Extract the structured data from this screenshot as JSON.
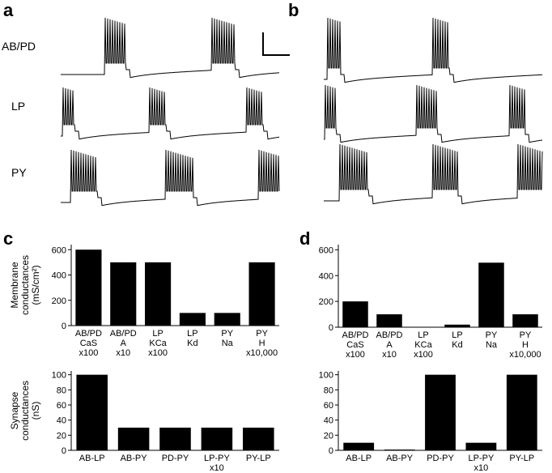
{
  "panel_labels": [
    "a",
    "b",
    "c",
    "d"
  ],
  "trace_labels": [
    "AB/PD",
    "LP",
    "PY"
  ],
  "chart_data": [
    {
      "type": "bar",
      "ylabel": [
        "Membrane",
        "conductances",
        "(mS/cm²)"
      ],
      "categories": [
        "AB/PD\nCaS\nx100",
        "AB/PD\nA\nx10",
        "LP\nKCa\nx100",
        "LP\nKd",
        "PY\nNa",
        "PY\nH\nx10,000"
      ],
      "values": [
        600,
        500,
        500,
        100,
        100,
        500
      ],
      "color": "#000000",
      "ylim": [
        0,
        640
      ],
      "yticks": [
        0,
        200,
        400,
        600
      ]
    },
    {
      "type": "bar",
      "ylabel": [
        "Synapse",
        "conductances",
        "(nS)"
      ],
      "categories": [
        "AB-LP",
        "AB-PY",
        "PD-PY",
        "LP-PY\nx10",
        "PY-LP"
      ],
      "values": [
        100,
        30,
        30,
        30,
        30
      ],
      "color": "#000000",
      "ylim": [
        0,
        105
      ],
      "yticks": [
        0,
        20,
        40,
        60,
        80,
        100
      ]
    },
    {
      "type": "bar",
      "categories": [
        "AB/PD\nCaS\nx100",
        "AB/PD\nA\nx10",
        "LP\nKCa\nx100",
        "LP\nKd",
        "PY\nNa",
        "PY\nH\nx10,000"
      ],
      "values": [
        200,
        100,
        0,
        20,
        500,
        100
      ],
      "color": "#000000",
      "ylim": [
        0,
        640
      ],
      "yticks": [
        0,
        200,
        400,
        600
      ]
    },
    {
      "type": "bar",
      "categories": [
        "AB-LP",
        "AB-PY",
        "PD-PY",
        "LP-PY\nx10",
        "PY-LP"
      ],
      "values": [
        10,
        1,
        100,
        10,
        100
      ],
      "color": "#000000",
      "ylim": [
        0,
        105
      ],
      "yticks": [
        0,
        20,
        40,
        60,
        80,
        100
      ]
    }
  ]
}
